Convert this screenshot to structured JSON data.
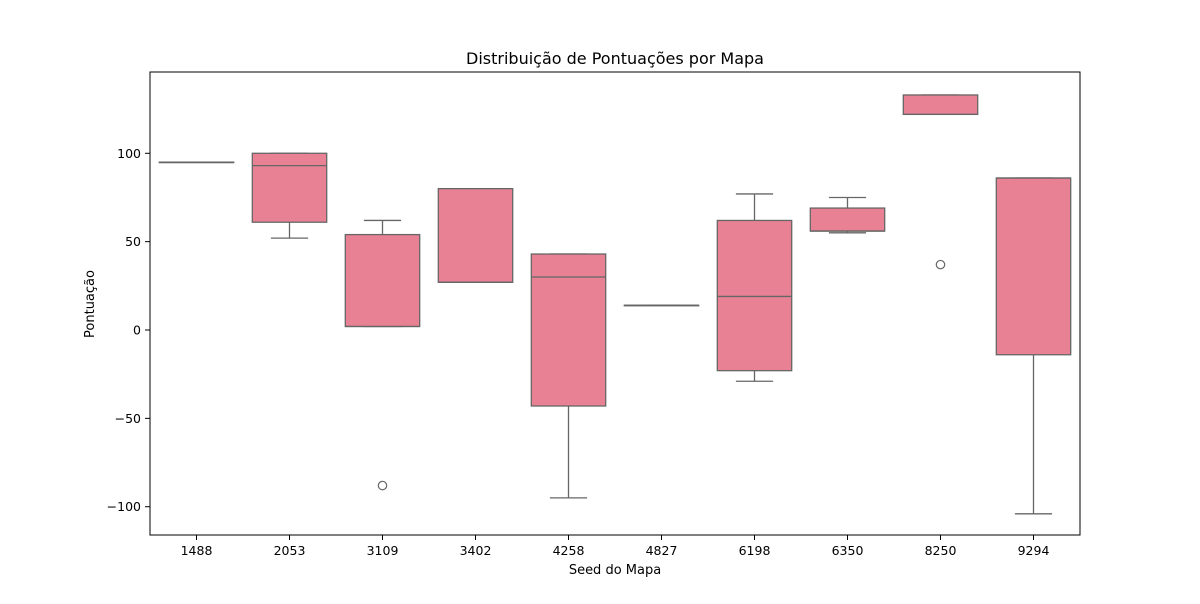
{
  "chart_data": {
    "type": "boxplot",
    "title": "Distribuição de Pontuações por Mapa",
    "xlabel": "Seed do Mapa",
    "ylabel": "Pontuação",
    "ylim": [
      -116,
      146
    ],
    "yticks": [
      -100,
      -50,
      0,
      50,
      100
    ],
    "ytick_labels": [
      "−100",
      "−50",
      "0",
      "50",
      "100"
    ],
    "grid": false,
    "box_color": "#e88194",
    "line_color": "#666666",
    "categories": [
      "1488",
      "2053",
      "3109",
      "3402",
      "4258",
      "4827",
      "6198",
      "6350",
      "8250",
      "9294"
    ],
    "boxes": [
      {
        "min": 95,
        "q1": 95,
        "median": 95,
        "q3": 95,
        "max": 95,
        "outliers": []
      },
      {
        "min": 52,
        "q1": 61,
        "median": 93,
        "q3": 100,
        "max": 100,
        "outliers": []
      },
      {
        "min": 2,
        "q1": 2,
        "median": 2,
        "q3": 54,
        "max": 62,
        "outliers": [
          -88
        ]
      },
      {
        "min": 27,
        "q1": 27,
        "median": 27,
        "q3": 80,
        "max": 80,
        "outliers": []
      },
      {
        "min": -95,
        "q1": -43,
        "median": 30,
        "q3": 43,
        "max": 43,
        "outliers": []
      },
      {
        "min": 14,
        "q1": 14,
        "median": 14,
        "q3": 14,
        "max": 14,
        "outliers": []
      },
      {
        "min": -29,
        "q1": -23,
        "median": 19,
        "q3": 62,
        "max": 77,
        "outliers": []
      },
      {
        "min": 55,
        "q1": 56,
        "median": 56,
        "q3": 69,
        "max": 75,
        "outliers": []
      },
      {
        "min": 122,
        "q1": 122,
        "median": 122,
        "q3": 133,
        "max": 133,
        "outliers": [
          37
        ]
      },
      {
        "min": -104,
        "q1": -14,
        "median": 86,
        "q3": 86,
        "max": 86,
        "outliers": []
      }
    ]
  }
}
